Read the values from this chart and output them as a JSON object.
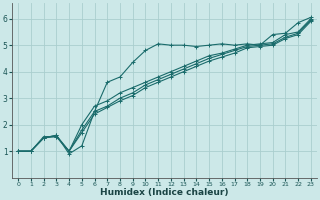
{
  "xlabel": "Humidex (Indice chaleur)",
  "ylabel": "",
  "bg_color": "#cce8e8",
  "grid_color": "#aacece",
  "line_color": "#1a6b6b",
  "xlim": [
    -0.5,
    23.5
  ],
  "ylim": [
    0,
    6.6
  ],
  "xticks": [
    0,
    1,
    2,
    3,
    4,
    5,
    6,
    7,
    8,
    9,
    10,
    11,
    12,
    13,
    14,
    15,
    16,
    17,
    18,
    19,
    20,
    21,
    22,
    23
  ],
  "yticks": [
    1,
    2,
    3,
    4,
    5,
    6
  ],
  "lines": [
    [
      0,
      1,
      1,
      1,
      2,
      1.5,
      3,
      1.6,
      4,
      0.9,
      5,
      1.2,
      6,
      2.5,
      7,
      3.6,
      8,
      3.8,
      9,
      4.35,
      10,
      4.8,
      11,
      5.05,
      12,
      5.0,
      13,
      5.0,
      14,
      4.95,
      15,
      5.0,
      16,
      5.05,
      17,
      5.0,
      18,
      5.05,
      19,
      5.0,
      20,
      5.4,
      21,
      5.45,
      22,
      5.85,
      23,
      6.05
    ],
    [
      0,
      1,
      1,
      1,
      2,
      1.55,
      3,
      1.55,
      4,
      1.0,
      5,
      2.0,
      6,
      2.7,
      7,
      2.9,
      8,
      3.2,
      9,
      3.4,
      10,
      3.6,
      11,
      3.8,
      12,
      4.0,
      13,
      4.2,
      14,
      4.4,
      15,
      4.6,
      16,
      4.7,
      17,
      4.85,
      18,
      5.0,
      19,
      5.05,
      20,
      5.1,
      21,
      5.4,
      22,
      5.5,
      23,
      6.0
    ],
    [
      0,
      1,
      1,
      1,
      2,
      1.5,
      3,
      1.6,
      4,
      1.0,
      5,
      1.8,
      6,
      2.5,
      7,
      2.7,
      8,
      3.0,
      9,
      3.2,
      10,
      3.5,
      11,
      3.7,
      12,
      3.9,
      13,
      4.1,
      14,
      4.3,
      15,
      4.5,
      16,
      4.65,
      17,
      4.8,
      18,
      4.95,
      19,
      5.0,
      20,
      5.05,
      21,
      5.3,
      22,
      5.45,
      23,
      5.95
    ],
    [
      0,
      1,
      1,
      1,
      2,
      1.5,
      3,
      1.55,
      4,
      1.0,
      5,
      1.7,
      6,
      2.4,
      7,
      2.65,
      8,
      2.9,
      9,
      3.1,
      10,
      3.4,
      11,
      3.6,
      12,
      3.8,
      13,
      4.0,
      14,
      4.2,
      15,
      4.4,
      16,
      4.55,
      17,
      4.7,
      18,
      4.9,
      19,
      4.95,
      20,
      5.0,
      21,
      5.25,
      22,
      5.4,
      23,
      5.9
    ]
  ]
}
